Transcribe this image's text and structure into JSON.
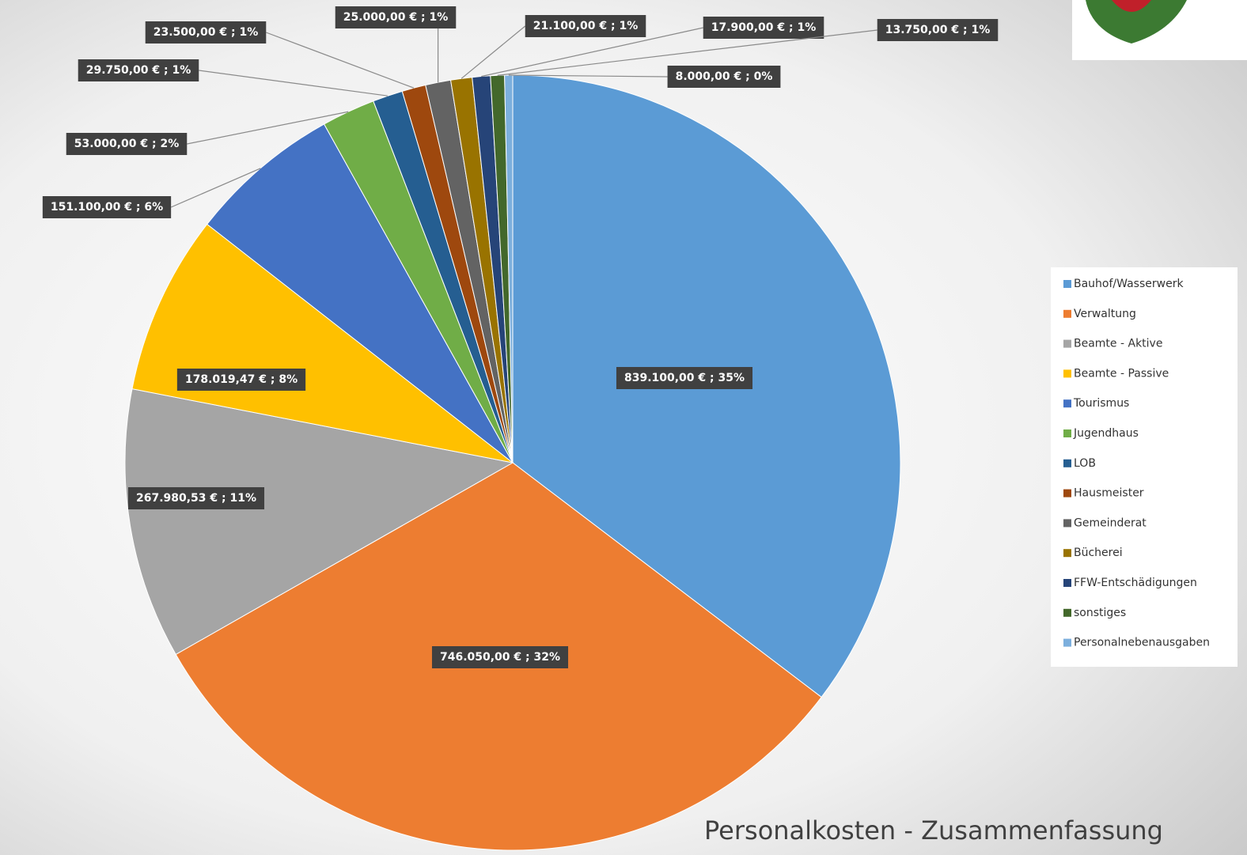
{
  "chart_data": {
    "type": "pie",
    "title": "Personalkosten - Zusammenfassung",
    "categories": [
      "Bauhof/Wasserwerk",
      "Verwaltung",
      "Beamte - Aktive",
      "Beamte - Passive",
      "Tourismus",
      "Jugendhaus",
      "LOB",
      "Hausmeister",
      "Gemeinderat",
      "Bücherei",
      "FFW-Entschädigungen",
      "sonstiges",
      "Personalnebenausgaben"
    ],
    "values": [
      839100,
      746050,
      267980.53,
      178019.47,
      151100,
      53000,
      29750,
      23500,
      25000,
      21100,
      17900,
      13750,
      8000
    ],
    "value_labels": [
      "839.100,00 € ; 35%",
      "746.050,00 € ; 32%",
      "267.980,53 € ; 11%",
      "178.019,47 € ; 8%",
      "151.100,00 € ; 6%",
      "53.000,00 € ; 2%",
      "29.750,00 € ; 1%",
      "23.500,00 € ; 1%",
      "25.000,00 € ; 1%",
      "21.100,00 € ; 1%",
      "17.900,00 € ; 1%",
      "13.750,00 € ; 1%",
      "8.000,00 € ; 0%"
    ],
    "colors": [
      "#5b9bd5",
      "#ed7d31",
      "#a5a5a5",
      "#ffc000",
      "#4472c4",
      "#70ad47",
      "#255e91",
      "#9e480e",
      "#636363",
      "#997300",
      "#264478",
      "#43682b",
      "#7cafdd"
    ],
    "legend": "right"
  }
}
